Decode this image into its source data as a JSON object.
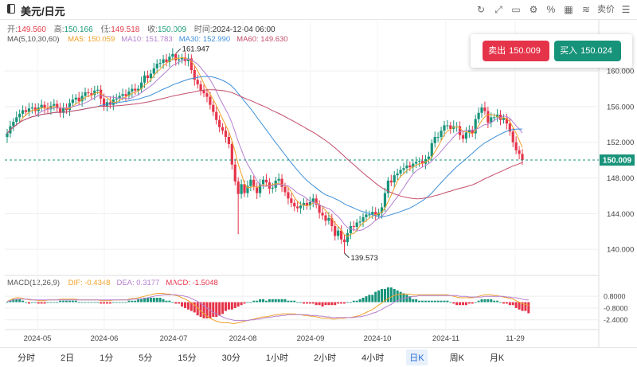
{
  "header": {
    "symbol": "美元/日元",
    "tools": [
      {
        "icon": "refresh-icon",
        "glyph": "↻"
      },
      {
        "icon": "fullscreen-icon",
        "glyph": "⤢"
      },
      {
        "icon": "comment-icon",
        "glyph": "▭"
      },
      {
        "icon": "settings-icon",
        "glyph": "⚙"
      },
      {
        "icon": "percent-icon",
        "glyph": "%"
      },
      {
        "icon": "grid-icon",
        "glyph": "▦"
      },
      {
        "icon": "indicator-icon",
        "glyph": "≋"
      },
      {
        "icon": "sell-text",
        "glyph": "卖价"
      },
      {
        "icon": "menu-icon",
        "glyph": "☰"
      }
    ]
  },
  "ohlc": {
    "open_label": "开:",
    "open": "149.560",
    "high_label": "高:",
    "high": "150.166",
    "low_label": "低:",
    "low": "149.518",
    "close_label": "收:",
    "close": "150.009",
    "time_label": "时间:",
    "time": "2024-12-04 06:00"
  },
  "ma_legend": {
    "title": "MA(5,10,30,60)",
    "items": [
      {
        "label": "MA5: 150.059",
        "color": "#f0a028"
      },
      {
        "label": "MA10: 151.783",
        "color": "#b57fd0"
      },
      {
        "label": "MA30: 152.990",
        "color": "#3f8fd8"
      },
      {
        "label": "MA60: 149.630",
        "color": "#c44d6a"
      }
    ]
  },
  "macd_legend": {
    "title": "MACD(12,26,9)",
    "items": [
      {
        "label": "DIF: -0.4348",
        "color": "#f0a028"
      },
      {
        "label": "DEA: 0.3177",
        "color": "#b57fd0"
      },
      {
        "label": "MACD: -1.5048",
        "color": "#e5344a"
      }
    ]
  },
  "trade": {
    "sell_label": "卖出",
    "sell_price": "150.009",
    "buy_label": "买入",
    "buy_price": "150.024"
  },
  "periods": [
    {
      "label": "分时",
      "active": false
    },
    {
      "label": "2日",
      "active": false
    },
    {
      "label": "1分",
      "active": false
    },
    {
      "label": "5分",
      "active": false
    },
    {
      "label": "15分",
      "active": false
    },
    {
      "label": "30分",
      "active": false
    },
    {
      "label": "1小时",
      "active": false
    },
    {
      "label": "2小时",
      "active": false
    },
    {
      "label": "4小时",
      "active": false
    },
    {
      "label": "日K",
      "active": true
    },
    {
      "label": "周K",
      "active": false
    },
    {
      "label": "月K",
      "active": false
    }
  ],
  "colors": {
    "up": "#17937a",
    "down": "#e5344a",
    "current_line": "#17937a",
    "ma5": "#f0a028",
    "ma10": "#b57fd0",
    "ma30": "#3f8fd8",
    "ma60": "#c44d6a",
    "grid": "#eeeeee"
  },
  "chart_data": {
    "type": "candlestick",
    "x_ticks": [
      "2024-05",
      "2024-06",
      "2024-07",
      "2024-08",
      "2024-09",
      "2024-10",
      "2024-11",
      "11-29"
    ],
    "price_ticks": [
      "160.000",
      "156.000",
      "152.000",
      "148.000",
      "144.000",
      "140.000"
    ],
    "price_range": [
      137.6,
      162.6
    ],
    "current_price_label": "150.009",
    "current_price": 150.009,
    "annotations": [
      {
        "label": "161.947",
        "value": 161.947,
        "type": "high"
      },
      {
        "label": "139.573",
        "value": 139.573,
        "type": "low"
      }
    ],
    "macd_ticks": [
      "0.8000",
      "-0.8000",
      "-2.4000"
    ],
    "macd_range": [
      -3.3,
      1.9
    ],
    "closes": [
      153.0,
      153.8,
      154.3,
      154.8,
      155.2,
      155.6,
      155.4,
      155.8,
      155.9,
      155.5,
      155.9,
      156.2,
      155.8,
      155.7,
      156.1,
      156.3,
      155.8,
      155.3,
      155.9,
      155.6,
      156.4,
      156.8,
      157.0,
      156.6,
      157.2,
      157.6,
      157.5,
      157.3,
      157.8,
      157.9,
      156.9,
      156.0,
      156.5,
      156.2,
      156.8,
      156.9,
      157.2,
      157.4,
      157.2,
      157.7,
      158.0,
      157.8,
      158.0,
      158.7,
      159.5,
      159.2,
      159.7,
      160.3,
      160.8,
      160.9,
      161.3,
      161.0,
      161.6,
      161.9,
      161.2,
      161.3,
      161.5,
      161.1,
      161.4,
      160.1,
      159.0,
      158.5,
      157.8,
      157.5,
      157.1,
      156.2,
      155.4,
      154.5,
      153.7,
      153.3,
      152.6,
      151.8,
      149.5,
      147.6,
      146.2,
      147.3,
      146.3,
      147.1,
      147.8,
      147.0,
      146.3,
      147.3,
      147.8,
      147.5,
      146.8,
      146.9,
      147.7,
      147.9,
      147.0,
      146.4,
      145.7,
      145.2,
      144.8,
      144.6,
      144.9,
      145.2,
      144.9,
      145.3,
      145.7,
      145.0,
      144.1,
      143.8,
      143.2,
      143.5,
      142.6,
      141.5,
      142.1,
      141.1,
      140.8,
      141.8,
      142.6,
      142.5,
      143.0,
      143.1,
      143.6,
      143.9,
      143.9,
      144.2,
      143.8,
      144.1,
      144.7,
      146.3,
      147.7,
      147.5,
      148.3,
      148.5,
      148.9,
      149.1,
      149.4,
      149.2,
      149.6,
      149.8,
      149.9,
      149.6,
      150.1,
      150.4,
      151.9,
      152.6,
      152.6,
      153.3,
      153.9,
      153.9,
      153.5,
      153.8,
      153.8,
      152.8,
      152.4,
      153.1,
      153.4,
      153.0,
      154.6,
      155.3,
      155.9,
      155.5,
      154.2,
      154.8,
      154.8,
      155.1,
      154.5,
      154.7,
      154.1,
      153.2,
      152.0,
      151.1,
      150.7,
      150.009
    ],
    "macd": {
      "dif": [
        0.1,
        0.3,
        0.5,
        0.6,
        0.6,
        0.5,
        0.4,
        0.3,
        0.3,
        0.3,
        0.2,
        0.2,
        0.2,
        0.3,
        0.3,
        0.3,
        0.3,
        0.4,
        0.4,
        0.4,
        0.4,
        0.4,
        0.4,
        0.3,
        0.3,
        0.3,
        0.3,
        0.3,
        0.3,
        0.3,
        0.2,
        0.2,
        0.2,
        0.2,
        0.3,
        0.3,
        0.3,
        0.3,
        0.3,
        0.4,
        0.5,
        0.5,
        0.6,
        0.7,
        0.8,
        0.9,
        1.0,
        1.1,
        1.2,
        1.2,
        1.2,
        1.1,
        1.1,
        1.0,
        0.9,
        0.8,
        0.6,
        0.4,
        0.2,
        -0.1,
        -0.4,
        -0.8,
        -1.2,
        -1.6,
        -1.9,
        -2.2,
        -2.4,
        -2.6,
        -2.7,
        -2.8,
        -2.8,
        -2.8,
        -2.9,
        -2.9,
        -2.8,
        -2.7,
        -2.6,
        -2.5,
        -2.4,
        -2.3,
        -2.2,
        -2.1,
        -2.0,
        -2.0,
        -1.9,
        -1.8,
        -1.7,
        -1.7,
        -1.6,
        -1.6,
        -1.6,
        -1.6,
        -1.6,
        -1.7,
        -1.7,
        -1.8,
        -1.8,
        -1.9,
        -1.9,
        -2.0,
        -2.1,
        -2.2,
        -2.2,
        -2.2,
        -2.3,
        -2.3,
        -2.2,
        -2.2,
        -2.2,
        -2.1,
        -2.1,
        -2.0,
        -1.9,
        -1.8,
        -1.6,
        -1.4,
        -1.2,
        -1.0,
        -0.7,
        -0.4,
        -0.1,
        0.2,
        0.5,
        0.7,
        0.9,
        1.0,
        1.1,
        1.1,
        1.1,
        1.1,
        1.0,
        1.0,
        1.0,
        1.0,
        1.0,
        1.0,
        1.0,
        1.0,
        1.0,
        1.0,
        1.0,
        1.0,
        0.9,
        0.8,
        0.7,
        0.6,
        0.6,
        0.6,
        0.6,
        0.6,
        0.7,
        0.8,
        0.9,
        1.0,
        1.0,
        1.0,
        0.9,
        0.9,
        0.8,
        0.7,
        0.6,
        0.5,
        0.4,
        0.2,
        0.0,
        -0.2,
        -0.3,
        -0.4348
      ],
      "dea": [
        0.1,
        0.2,
        0.3,
        0.4,
        0.4,
        0.4,
        0.4,
        0.4,
        0.3,
        0.3,
        0.3,
        0.3,
        0.3,
        0.3,
        0.3,
        0.3,
        0.3,
        0.3,
        0.3,
        0.3,
        0.3,
        0.3,
        0.3,
        0.3,
        0.3,
        0.3,
        0.3,
        0.3,
        0.3,
        0.3,
        0.3,
        0.3,
        0.3,
        0.3,
        0.3,
        0.3,
        0.3,
        0.3,
        0.3,
        0.3,
        0.4,
        0.4,
        0.4,
        0.5,
        0.5,
        0.6,
        0.7,
        0.8,
        0.9,
        0.9,
        1.0,
        1.0,
        1.0,
        1.0,
        1.0,
        0.9,
        0.9,
        0.8,
        0.7,
        0.5,
        0.3,
        0.1,
        -0.2,
        -0.5,
        -0.8,
        -1.1,
        -1.4,
        -1.6,
        -1.8,
        -2.0,
        -2.2,
        -2.3,
        -2.4,
        -2.5,
        -2.5,
        -2.5,
        -2.5,
        -2.5,
        -2.4,
        -2.4,
        -2.3,
        -2.3,
        -2.2,
        -2.1,
        -2.1,
        -2.0,
        -1.9,
        -1.9,
        -1.8,
        -1.8,
        -1.7,
        -1.7,
        -1.7,
        -1.7,
        -1.7,
        -1.7,
        -1.7,
        -1.8,
        -1.8,
        -1.8,
        -1.9,
        -1.9,
        -2.0,
        -2.0,
        -2.1,
        -2.1,
        -2.1,
        -2.1,
        -2.1,
        -2.1,
        -2.1,
        -2.1,
        -2.0,
        -2.0,
        -1.9,
        -1.8,
        -1.7,
        -1.5,
        -1.4,
        -1.2,
        -1.0,
        -0.7,
        -0.5,
        -0.3,
        0.0,
        0.2,
        0.4,
        0.5,
        0.6,
        0.7,
        0.8,
        0.8,
        0.9,
        0.9,
        0.9,
        0.9,
        0.9,
        0.9,
        0.9,
        0.9,
        0.9,
        0.9,
        0.9,
        0.9,
        0.9,
        0.8,
        0.8,
        0.8,
        0.7,
        0.7,
        0.7,
        0.7,
        0.7,
        0.8,
        0.8,
        0.8,
        0.8,
        0.8,
        0.8,
        0.8,
        0.7,
        0.7,
        0.6,
        0.6,
        0.5,
        0.4,
        0.3,
        0.3177
      ]
    }
  }
}
